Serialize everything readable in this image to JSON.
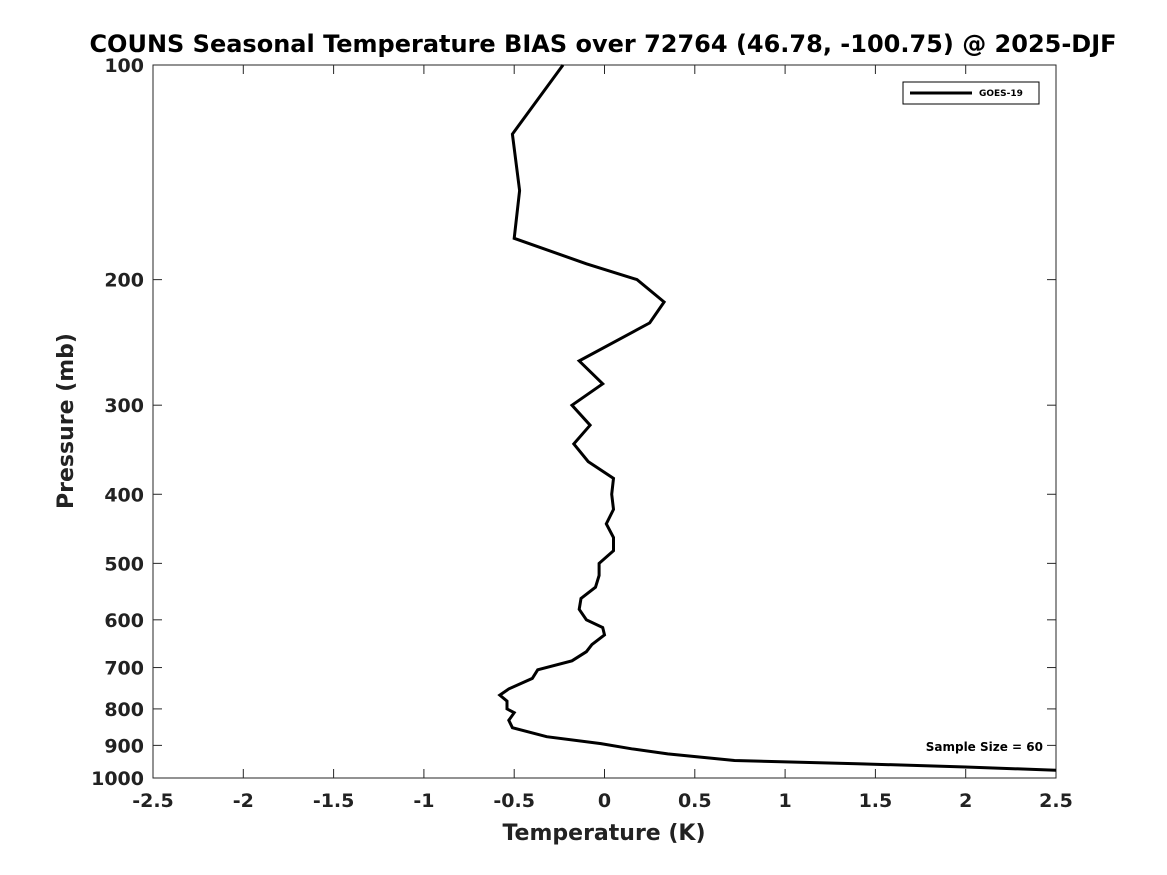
{
  "chart_data": {
    "type": "line",
    "title": "COUNS Seasonal Temperature BIAS over 72764 (46.78, -100.75) @ 2025-DJF",
    "xlabel": "Temperature (K)",
    "ylabel": "Pressure (mb)",
    "xlim": [
      -2.5,
      2.5
    ],
    "ylim": [
      100,
      1000
    ],
    "y_scale": "log",
    "y_reversed": true,
    "x_ticks": [
      -2.5,
      -2,
      -1.5,
      -1,
      -0.5,
      0,
      0.5,
      1,
      1.5,
      2,
      2.5
    ],
    "x_tick_labels": [
      "-2.5",
      "-2",
      "-1.5",
      "-1",
      "-0.5",
      "0",
      "0.5",
      "1",
      "1.5",
      "2",
      "2.5"
    ],
    "y_ticks": [
      100,
      200,
      300,
      400,
      500,
      600,
      700,
      800,
      900,
      1000
    ],
    "y_tick_labels": [
      "100",
      "200",
      "300",
      "400",
      "500",
      "600",
      "700",
      "800",
      "900",
      "1000"
    ],
    "grid": false,
    "legend_position": "top-right",
    "annotation": "Sample Size = 60",
    "series": [
      {
        "name": "GOES-19",
        "color": "#000000",
        "points": [
          [
            -0.23,
            100
          ],
          [
            -0.51,
            125
          ],
          [
            -0.47,
            150
          ],
          [
            -0.5,
            175
          ],
          [
            -0.1,
            190
          ],
          [
            0.18,
            200
          ],
          [
            0.33,
            215
          ],
          [
            0.25,
            230
          ],
          [
            -0.14,
            260
          ],
          [
            -0.01,
            280
          ],
          [
            -0.18,
            300
          ],
          [
            -0.08,
            320
          ],
          [
            -0.17,
            340
          ],
          [
            -0.09,
            360
          ],
          [
            0.05,
            380
          ],
          [
            0.04,
            400
          ],
          [
            0.05,
            420
          ],
          [
            0.01,
            440
          ],
          [
            0.05,
            460
          ],
          [
            0.05,
            480
          ],
          [
            -0.03,
            500
          ],
          [
            -0.03,
            520
          ],
          [
            -0.05,
            540
          ],
          [
            -0.13,
            560
          ],
          [
            -0.14,
            580
          ],
          [
            -0.1,
            600
          ],
          [
            -0.01,
            615
          ],
          [
            0.0,
            630
          ],
          [
            -0.07,
            650
          ],
          [
            -0.1,
            665
          ],
          [
            -0.18,
            685
          ],
          [
            -0.37,
            705
          ],
          [
            -0.4,
            725
          ],
          [
            -0.53,
            750
          ],
          [
            -0.58,
            765
          ],
          [
            -0.54,
            780
          ],
          [
            -0.54,
            800
          ],
          [
            -0.5,
            810
          ],
          [
            -0.53,
            830
          ],
          [
            -0.51,
            850
          ],
          [
            -0.32,
            875
          ],
          [
            -0.02,
            895
          ],
          [
            0.15,
            910
          ],
          [
            0.35,
            925
          ],
          [
            0.72,
            945
          ],
          [
            1.4,
            955
          ],
          [
            2.0,
            965
          ],
          [
            2.5,
            975
          ]
        ]
      }
    ]
  }
}
